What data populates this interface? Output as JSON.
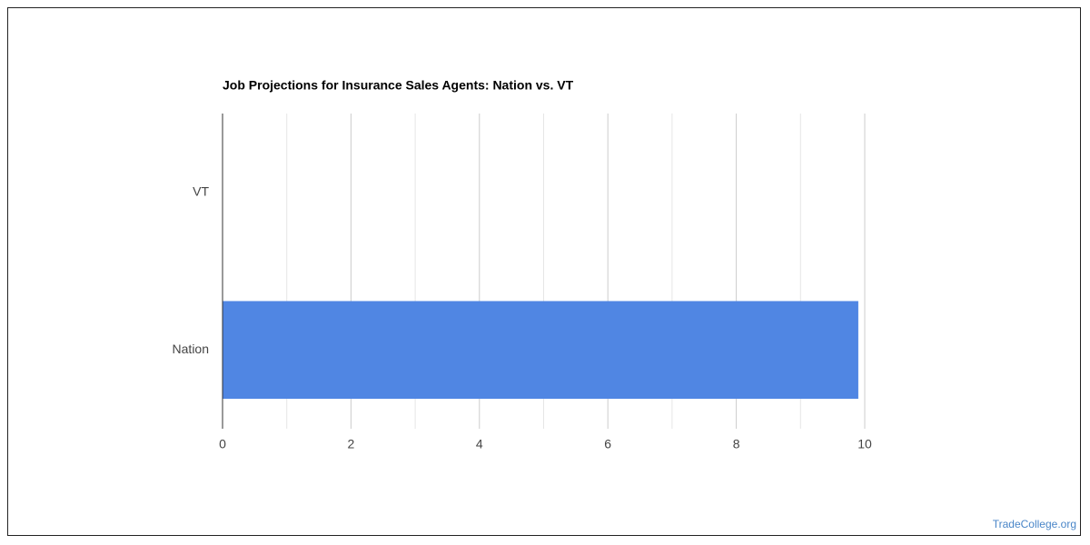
{
  "chart_data": {
    "type": "hbar",
    "title": "Job Projections for Insurance Sales Agents: Nation vs. VT",
    "categories": [
      "VT",
      "Nation"
    ],
    "values": [
      0,
      9.9
    ],
    "color": "#5086e3",
    "xlim": [
      0,
      10
    ],
    "xticks": [
      0,
      2,
      4,
      6,
      8,
      10
    ],
    "minor_gridlines": [
      1,
      3,
      5,
      7,
      9
    ],
    "grid": true
  },
  "footer": {
    "credit": "TradeCollege.org"
  }
}
